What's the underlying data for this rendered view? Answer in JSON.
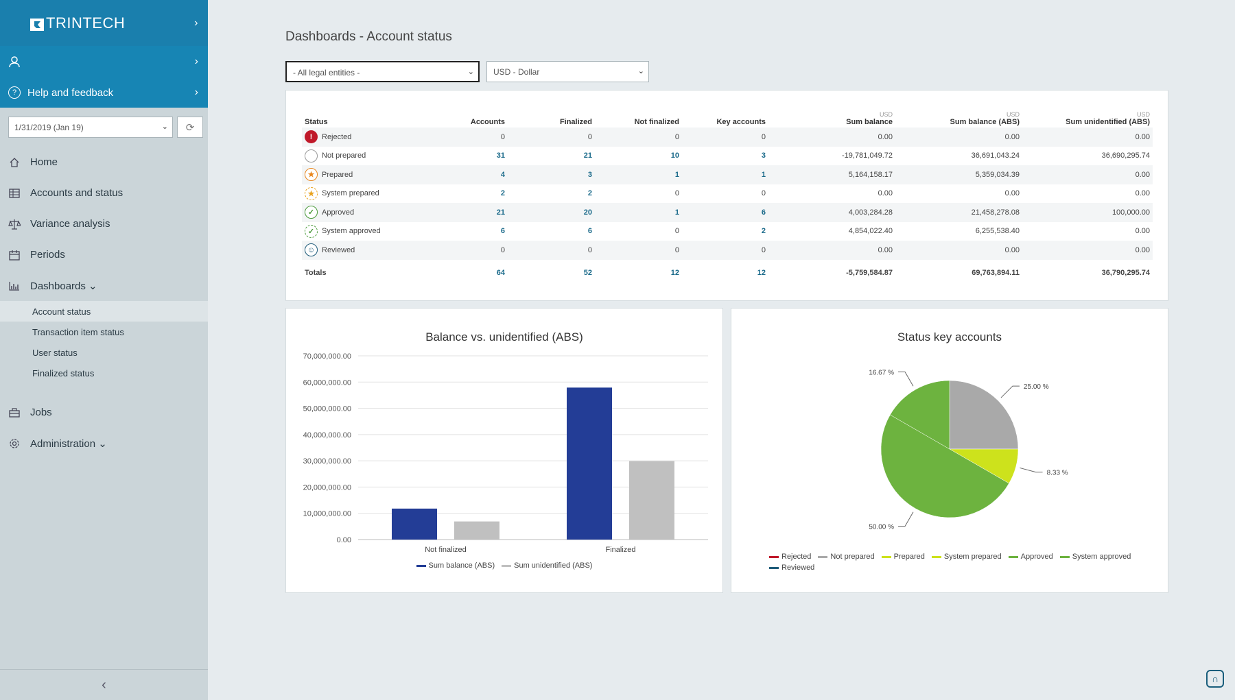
{
  "sidebar": {
    "logo": "TRINTECH",
    "help": "Help and feedback",
    "period": "1/31/2019 (Jan 19)",
    "nav": [
      {
        "label": "Home",
        "icon": "home-icon"
      },
      {
        "label": "Accounts and status",
        "icon": "table-icon"
      },
      {
        "label": "Variance analysis",
        "icon": "scale-icon"
      },
      {
        "label": "Periods",
        "icon": "calendar-icon"
      },
      {
        "label": "Dashboards",
        "icon": "bar-chart-icon"
      }
    ],
    "dashboards_sub": [
      "Account status",
      "Transaction item status",
      "User status",
      "Finalized status"
    ],
    "nav_bottom": [
      {
        "label": "Jobs",
        "icon": "briefcase-icon"
      },
      {
        "label": "Administration",
        "icon": "gear-icon"
      }
    ]
  },
  "page": {
    "title": "Dashboards - Account status",
    "entity_filter": "- All legal entities -",
    "currency_filter": "USD - Dollar"
  },
  "table": {
    "headers": {
      "status": "Status",
      "accounts": "Accounts",
      "finalized": "Finalized",
      "not_finalized": "Not finalized",
      "key_accounts": "Key accounts",
      "sum_balance": "Sum balance",
      "sum_balance_abs": "Sum balance (ABS)",
      "sum_unidentified": "Sum unidentified (ABS)",
      "currency": "USD"
    },
    "rows": [
      {
        "status": "Rejected",
        "accounts": "0",
        "finalized": "0",
        "not_finalized": "0",
        "key": "0",
        "sum": "0.00",
        "sum_abs": "0.00",
        "unid": "0.00"
      },
      {
        "status": "Not prepared",
        "accounts": "31",
        "finalized": "21",
        "not_finalized": "10",
        "key": "3",
        "sum": "-19,781,049.72",
        "sum_abs": "36,691,043.24",
        "unid": "36,690,295.74"
      },
      {
        "status": "Prepared",
        "accounts": "4",
        "finalized": "3",
        "not_finalized": "1",
        "key": "1",
        "sum": "5,164,158.17",
        "sum_abs": "5,359,034.39",
        "unid": "0.00"
      },
      {
        "status": "System prepared",
        "accounts": "2",
        "finalized": "2",
        "not_finalized": "0",
        "key": "0",
        "sum": "0.00",
        "sum_abs": "0.00",
        "unid": "0.00"
      },
      {
        "status": "Approved",
        "accounts": "21",
        "finalized": "20",
        "not_finalized": "1",
        "key": "6",
        "sum": "4,003,284.28",
        "sum_abs": "21,458,278.08",
        "unid": "100,000.00"
      },
      {
        "status": "System approved",
        "accounts": "6",
        "finalized": "6",
        "not_finalized": "0",
        "key": "2",
        "sum": "4,854,022.40",
        "sum_abs": "6,255,538.40",
        "unid": "0.00"
      },
      {
        "status": "Reviewed",
        "accounts": "0",
        "finalized": "0",
        "not_finalized": "0",
        "key": "0",
        "sum": "0.00",
        "sum_abs": "0.00",
        "unid": "0.00"
      }
    ],
    "totals": {
      "label": "Totals",
      "accounts": "64",
      "finalized": "52",
      "not_finalized": "12",
      "key": "12",
      "sum": "-5,759,584.87",
      "sum_abs": "69,763,894.11",
      "unid": "36,790,295.74"
    }
  },
  "chart_data": [
    {
      "type": "bar",
      "title": "Balance vs. unidentified (ABS)",
      "categories": [
        "Not finalized",
        "Finalized"
      ],
      "series": [
        {
          "name": "Sum balance (ABS)",
          "values": [
            11800000,
            57900000
          ],
          "color": "#233d96"
        },
        {
          "name": "Sum unidentified (ABS)",
          "values": [
            6900000,
            29900000
          ],
          "color": "#c0c0c0"
        }
      ],
      "ylim": [
        0,
        70000000
      ],
      "yticks": [
        "0.00",
        "10,000,000.00",
        "20,000,000.00",
        "30,000,000.00",
        "40,000,000.00",
        "50,000,000.00",
        "60,000,000.00",
        "70,000,000.00"
      ],
      "grid": true,
      "legend": "bottom"
    },
    {
      "type": "pie",
      "title": "Status key accounts",
      "slices": [
        {
          "name": "Rejected",
          "value": 0,
          "label": "",
          "color": "#c0192a"
        },
        {
          "name": "Not prepared",
          "value": 25.0,
          "label": "25.00 %",
          "color": "#a9a9a9"
        },
        {
          "name": "Prepared",
          "value": 8.33,
          "label": "8.33 %",
          "color": "#cde21c"
        },
        {
          "name": "System prepared",
          "value": 0,
          "label": "",
          "color": "#cde21c"
        },
        {
          "name": "Approved",
          "value": 50.0,
          "label": "50.00 %",
          "color": "#6db33f"
        },
        {
          "name": "System approved",
          "value": 16.67,
          "label": "16.67 %",
          "color": "#6db33f"
        },
        {
          "name": "Reviewed",
          "value": 0,
          "label": "",
          "color": "#1f5c7a"
        }
      ],
      "legend": "bottom"
    }
  ]
}
